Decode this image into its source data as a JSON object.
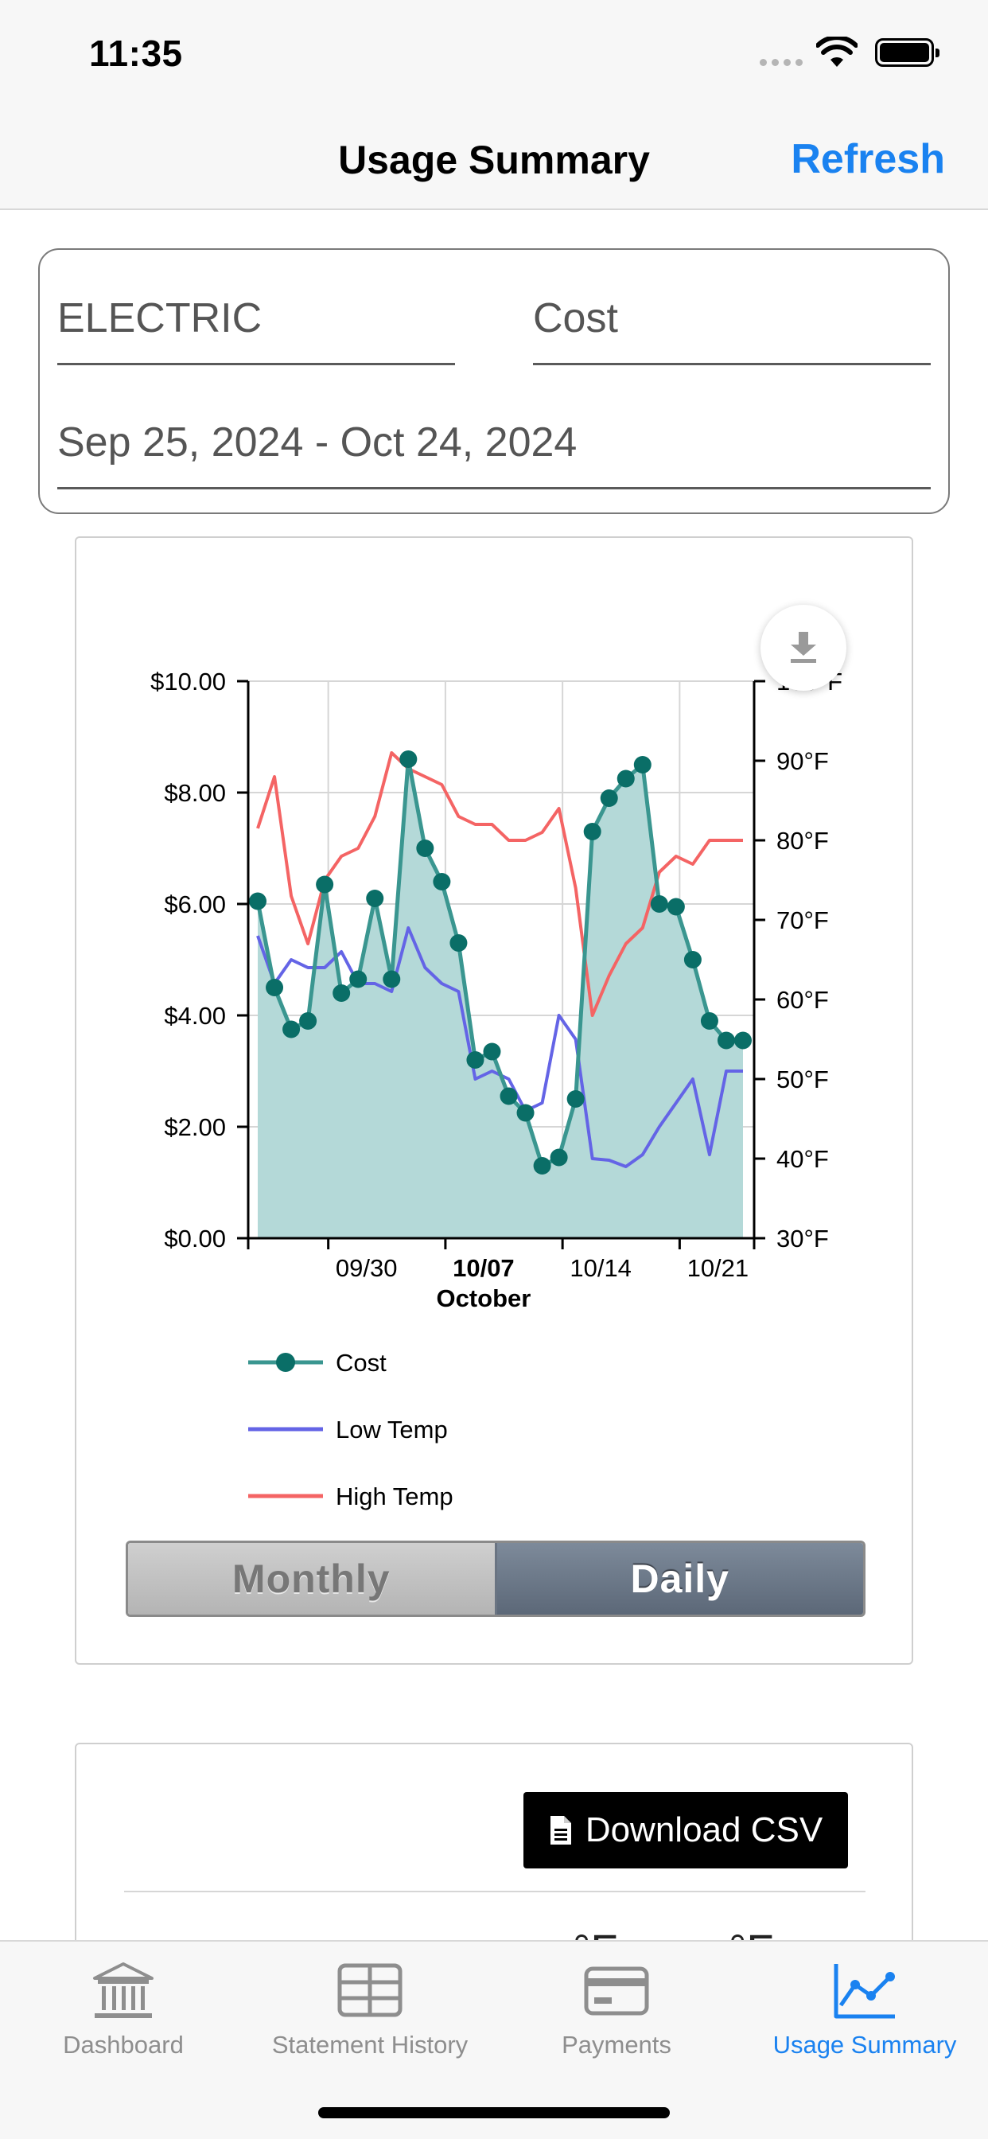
{
  "status_bar": {
    "time": "11:35"
  },
  "nav": {
    "title": "Usage Summary",
    "refresh_label": "Refresh"
  },
  "filters": {
    "utility": "ELECTRIC",
    "metric": "Cost",
    "date_range": "Sep 25, 2024 - Oct 24, 2024"
  },
  "chart_data": {
    "type": "line",
    "x": [
      "09/25",
      "09/26",
      "09/27",
      "09/28",
      "09/29",
      "09/30",
      "10/01",
      "10/02",
      "10/03",
      "10/04",
      "10/05",
      "10/06",
      "10/07",
      "10/08",
      "10/09",
      "10/10",
      "10/11",
      "10/12",
      "10/13",
      "10/14",
      "10/15",
      "10/16",
      "10/17",
      "10/18",
      "10/19",
      "10/20",
      "10/21",
      "10/22",
      "10/23",
      "10/24"
    ],
    "x_ticks": [
      "09/30",
      "10/07",
      "10/14",
      "10/21"
    ],
    "x_tick_bold": "10/07",
    "x_sublabel": "October",
    "y_left_ticks": [
      "$0.00",
      "$2.00",
      "$4.00",
      "$6.00",
      "$8.00",
      "$10.00"
    ],
    "y_right_ticks": [
      "30°F",
      "40°F",
      "50°F",
      "60°F",
      "70°F",
      "80°F",
      "90°F",
      "100°F"
    ],
    "ylim_left": [
      0,
      10
    ],
    "ylim_right": [
      30,
      100
    ],
    "series": [
      {
        "name": "Cost",
        "axis": "left",
        "style": "area-markers",
        "color": "#3a9690",
        "fill": "#b4d9d8",
        "marker_color": "#0a6e67",
        "values": [
          6.05,
          4.5,
          3.75,
          3.9,
          6.35,
          4.4,
          4.65,
          6.1,
          4.65,
          8.6,
          7.0,
          6.4,
          5.3,
          3.2,
          3.35,
          2.55,
          2.25,
          1.3,
          1.45,
          2.5,
          7.3,
          7.9,
          8.25,
          8.5,
          6.0,
          5.95,
          5.0,
          3.9,
          3.55,
          3.55
        ]
      },
      {
        "name": "Low Temp",
        "axis": "right",
        "style": "line",
        "color": "#6464e6",
        "values": [
          68,
          62,
          65,
          64,
          64,
          66,
          62,
          62,
          61,
          69,
          64,
          62,
          61,
          50,
          51,
          50,
          46,
          47,
          58,
          55,
          40,
          39.8,
          39,
          40.5,
          44,
          47,
          50,
          40.5,
          51,
          51
        ]
      },
      {
        "name": "High Temp",
        "axis": "right",
        "style": "line",
        "color": "#f46464",
        "values": [
          81.5,
          88,
          73,
          67,
          75,
          78,
          79,
          83,
          91,
          89,
          88,
          87,
          83,
          82,
          82,
          80,
          80,
          81,
          84,
          74,
          58,
          63,
          67,
          69,
          76,
          78,
          77,
          80,
          80,
          80
        ]
      }
    ],
    "legend": [
      "Cost",
      "Low Temp",
      "High Temp"
    ],
    "legend_position": "bottom-left",
    "grid": true
  },
  "period_toggle": {
    "monthly_label": "Monthly",
    "daily_label": "Daily",
    "selected": "Daily"
  },
  "csv": {
    "button_label": "Download CSV",
    "peek_left": "°F",
    "peek_right": "°F"
  },
  "tabs": [
    {
      "label": "Dashboard",
      "icon": "bank-icon"
    },
    {
      "label": "Statement History",
      "icon": "table-icon"
    },
    {
      "label": "Payments",
      "icon": "credit-card-icon"
    },
    {
      "label": "Usage Summary",
      "icon": "chart-icon"
    }
  ],
  "colors": {
    "accent": "#1a82f0",
    "cost_series": "#3a9690",
    "low_temp": "#6464e6",
    "high_temp": "#f46464"
  }
}
